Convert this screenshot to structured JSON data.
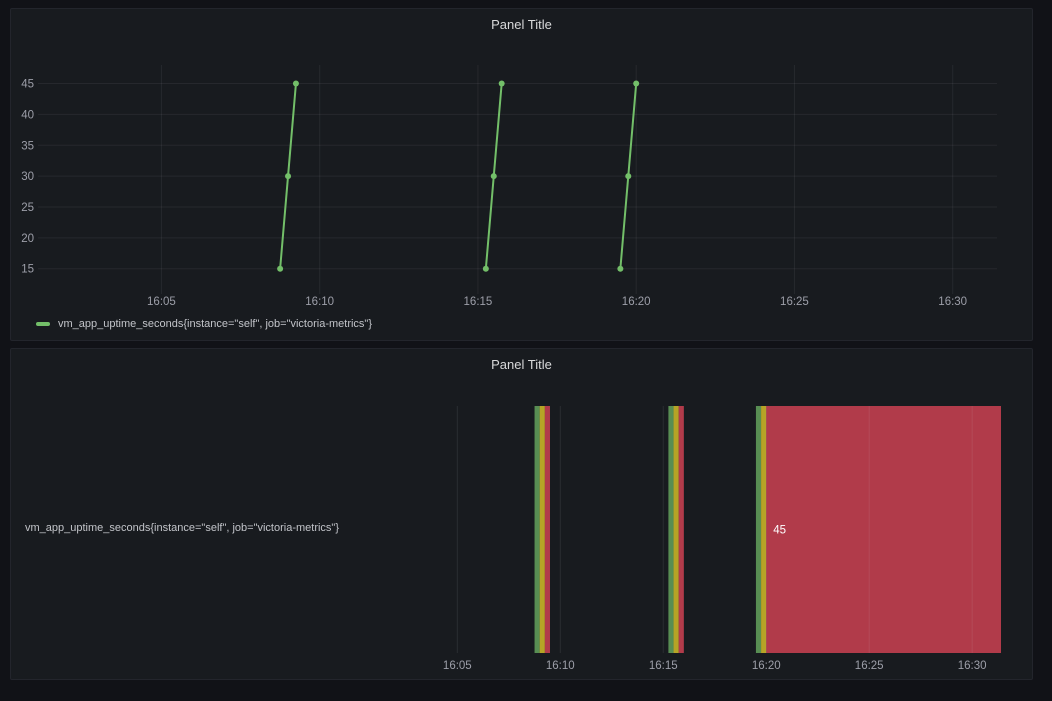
{
  "page": {
    "background": "#111217",
    "panel_background": "#181b1f"
  },
  "colors": {
    "series_green": "#73BF69",
    "threshold_green": "#73BF69",
    "threshold_yellow": "#FADE2A",
    "threshold_red": "#F2495C",
    "grid": "rgba(204,204,220,0.08)",
    "axis_text": "#9d9fa9",
    "title_text": "#d8d9da"
  },
  "panels": [
    {
      "title": "Panel Title",
      "type": "timeseries",
      "legend": {
        "label": "vm_app_uptime_seconds{instance=\"self\", job=\"victoria-metrics\"}",
        "swatch_color": "#73BF69"
      },
      "chart_data": {
        "type": "line",
        "title": "Panel Title",
        "x_axis": {
          "unit": "time",
          "tick_labels": [
            "16:05",
            "16:10",
            "16:15",
            "16:20",
            "16:25",
            "16:30"
          ],
          "tick_minutes": [
            5,
            10,
            15,
            20,
            25,
            30
          ],
          "range_minutes_after_1600": [
            1.1,
            31.4
          ]
        },
        "y_axis": {
          "tick_labels": [
            15,
            20,
            25,
            30,
            35,
            40,
            45
          ],
          "range": [
            12.2,
            48
          ]
        },
        "grid": true,
        "legend_position": "bottom-left",
        "series": [
          {
            "name": "vm_app_uptime_seconds{instance=\"self\", job=\"victoria-metrics\"}",
            "color": "#73BF69",
            "segments": [
              [
                {
                  "time": "16:08:45",
                  "minute": 8.75,
                  "value": 15
                },
                {
                  "time": "16:09:00",
                  "minute": 9.0,
                  "value": 30
                },
                {
                  "time": "16:09:15",
                  "minute": 9.25,
                  "value": 45
                }
              ],
              [
                {
                  "time": "16:15:15",
                  "minute": 15.25,
                  "value": 15
                },
                {
                  "time": "16:15:30",
                  "minute": 15.5,
                  "value": 30
                },
                {
                  "time": "16:15:45",
                  "minute": 15.75,
                  "value": 45
                }
              ],
              [
                {
                  "time": "16:19:30",
                  "minute": 19.5,
                  "value": 15
                },
                {
                  "time": "16:19:45",
                  "minute": 19.75,
                  "value": 30
                },
                {
                  "time": "16:20:00",
                  "minute": 20.0,
                  "value": 45
                }
              ]
            ]
          }
        ]
      }
    },
    {
      "title": "Panel Title",
      "type": "state-timeline",
      "row_label": "vm_app_uptime_seconds{instance=\"self\", job=\"victoria-metrics\"}",
      "chart_data": {
        "type": "heatmap",
        "subtype": "state-timeline",
        "x_axis": {
          "unit": "time",
          "tick_labels": [
            "16:05",
            "16:10",
            "16:15",
            "16:20",
            "16:25",
            "16:30"
          ],
          "tick_minutes": [
            5,
            10,
            15,
            20,
            25,
            30
          ],
          "range_minutes_after_1600": [
            1.1,
            31.4
          ]
        },
        "fill_opacity": 0.7,
        "thresholds": [
          {
            "value": 15,
            "color": "#73BF69"
          },
          {
            "value": 30,
            "color": "#FADE2A"
          },
          {
            "value": 45,
            "color": "#F2495C"
          }
        ],
        "rows": [
          {
            "label": "vm_app_uptime_seconds{instance=\"self\", job=\"victoria-metrics\"}",
            "segments": [
              {
                "from": "16:08:45",
                "to": "16:09:00",
                "from_minute": 8.75,
                "to_minute": 9.0,
                "value": 15,
                "color": "#73BF69",
                "label": ""
              },
              {
                "from": "16:09:00",
                "to": "16:09:15",
                "from_minute": 9.0,
                "to_minute": 9.25,
                "value": 30,
                "color": "#FADE2A",
                "label": ""
              },
              {
                "from": "16:09:15",
                "to": "16:09:30",
                "from_minute": 9.25,
                "to_minute": 9.5,
                "value": 45,
                "color": "#F2495C",
                "label": ""
              },
              {
                "from": "16:15:15",
                "to": "16:15:30",
                "from_minute": 15.25,
                "to_minute": 15.5,
                "value": 15,
                "color": "#73BF69",
                "label": ""
              },
              {
                "from": "16:15:30",
                "to": "16:15:45",
                "from_minute": 15.5,
                "to_minute": 15.75,
                "value": 30,
                "color": "#FADE2A",
                "label": ""
              },
              {
                "from": "16:15:45",
                "to": "16:16:00",
                "from_minute": 15.75,
                "to_minute": 16.0,
                "value": 45,
                "color": "#F2495C",
                "label": ""
              },
              {
                "from": "16:19:30",
                "to": "16:19:45",
                "from_minute": 19.5,
                "to_minute": 19.75,
                "value": 15,
                "color": "#73BF69",
                "label": ""
              },
              {
                "from": "16:19:45",
                "to": "16:20:00",
                "from_minute": 19.75,
                "to_minute": 20.0,
                "value": 30,
                "color": "#FADE2A",
                "label": ""
              },
              {
                "from": "16:20:00",
                "to": "end",
                "from_minute": 20.0,
                "to_minute": 31.4,
                "value": 45,
                "color": "#F2495C",
                "label": "45"
              }
            ]
          }
        ]
      }
    }
  ]
}
